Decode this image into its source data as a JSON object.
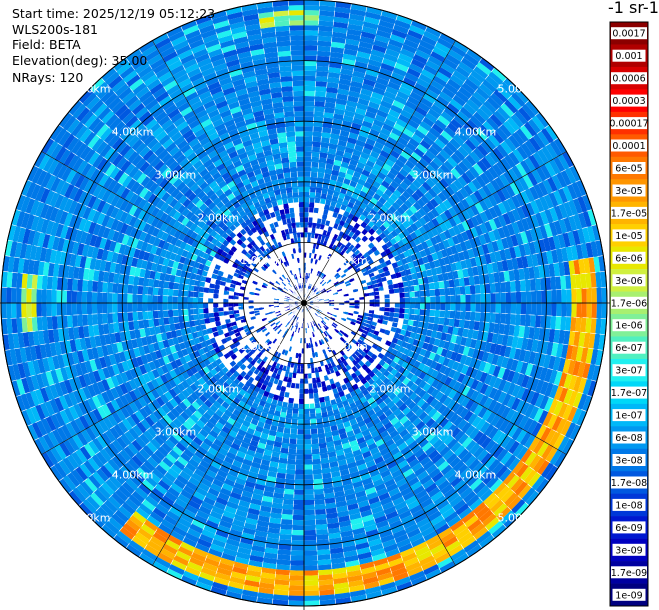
{
  "header": {
    "start_time": "Start time: 2025/12/19 05:12:23",
    "instrument": "WLS200s-181",
    "field": "Field: BETA",
    "elevation": "Elevation(deg): 35.00",
    "nrays": "NRays: 120"
  },
  "colorbar": {
    "title": "-1 sr-1",
    "labels": [
      "0.0017",
      "0.001",
      "0.0006",
      "0.0003",
      "0.00017",
      "0.0001",
      "6e-05",
      "3e-05",
      "1.7e-05",
      "1e-05",
      "6e-06",
      "3e-06",
      "1.7e-06",
      "1e-06",
      "6e-07",
      "3e-07",
      "1.7e-07",
      "1e-07",
      "6e-08",
      "3e-08",
      "1.7e-08",
      "1e-08",
      "6e-09",
      "3e-09",
      "1.7e-09",
      "1e-09"
    ],
    "colors": [
      "#8b0000",
      "#b00000",
      "#d80000",
      "#ff0000",
      "#ff3000",
      "#ff5a00",
      "#ff7800",
      "#ff9600",
      "#ffb400",
      "#ffd000",
      "#e8e800",
      "#d0f040",
      "#a8f070",
      "#80f098",
      "#50f0c0",
      "#20f0f0",
      "#00d8f8",
      "#00b8f8",
      "#0098f0",
      "#0078e8",
      "#0058e0",
      "#0038d8",
      "#0018d0",
      "#0000c0",
      "#0000a0",
      "#000080"
    ]
  },
  "chart_data": {
    "type": "heatmap",
    "projection": "polar-ppi",
    "field": "BETA",
    "elevation_deg": 35.0,
    "n_rays": 120,
    "max_range_km": 5.0,
    "range_rings_km": [
      1.0,
      2.0,
      3.0,
      4.0,
      5.0
    ],
    "ring_labels": [
      "1.00km",
      "2.00km",
      "3.00km",
      "4.00km",
      "5.00km"
    ],
    "background_level": "3e-08",
    "features": [
      {
        "description_level": "1.7e-05",
        "azimuth_range_deg": [
          80,
          220
        ],
        "range_km": [
          4.4,
          4.8
        ]
      },
      {
        "description_level": "1.7e-06",
        "azimuth_range_deg": [
          265,
          275
        ],
        "range_km": [
          4.4,
          4.7
        ]
      },
      {
        "description_level": "1.7e-06",
        "azimuth_range_deg": [
          352,
          2
        ],
        "range_km": [
          4.6,
          4.8
        ]
      }
    ]
  }
}
